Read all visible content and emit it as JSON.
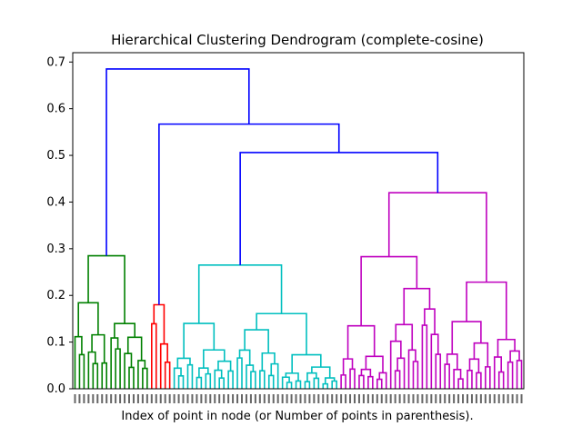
{
  "chart_data": {
    "type": "dendrogram",
    "title": "Hierarchical Clustering Dendrogram (complete-cosine)",
    "xlabel": "Index of point in node (or Number of points in parenthesis).",
    "ylabel": "",
    "ylim": [
      0,
      0.72
    ],
    "yticks": [
      "0.0",
      "0.1",
      "0.2",
      "0.3",
      "0.4",
      "0.5",
      "0.6",
      "0.7"
    ],
    "grid": false,
    "leaf_count": 100,
    "colors": {
      "green": "#008000",
      "red": "#ff0000",
      "cyan": "#00bfbf",
      "magenta": "#bf00bf",
      "blue": "#0000ff"
    },
    "clusters": [
      {
        "color": "green",
        "leaves": 17,
        "root_height": 0.285
      },
      {
        "color": "red",
        "leaves": 5,
        "root_height": 0.18
      },
      {
        "color": "cyan",
        "leaves": 37,
        "root_height": 0.265
      },
      {
        "color": "magenta",
        "leaves": 41,
        "root_height": 0.42
      }
    ],
    "links": [
      {
        "join": [
          "green",
          "rest"
        ],
        "height": 0.685,
        "color": "blue"
      },
      {
        "join": [
          "red",
          "rest2"
        ],
        "height": 0.567,
        "color": "blue"
      },
      {
        "join": [
          "cyan",
          "magenta"
        ],
        "height": 0.506,
        "color": "blue"
      }
    ]
  }
}
